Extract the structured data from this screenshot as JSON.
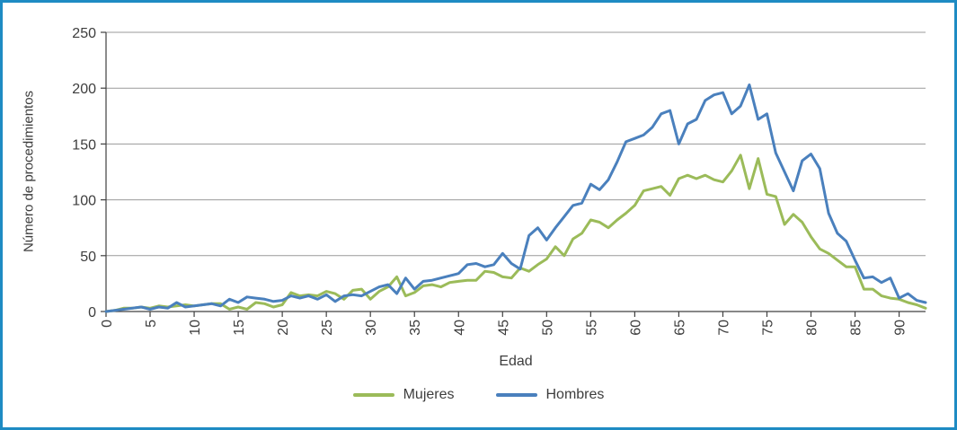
{
  "window": {
    "background": "#ffffff",
    "border_color": "#1e8bc3"
  },
  "chart_data": {
    "type": "line",
    "title": "",
    "xlabel": "Edad",
    "ylabel": "Número de procedimientos",
    "x": {
      "min": 0,
      "max": 93,
      "step": 1
    },
    "x_tick_labels": [
      "0",
      "5",
      "10",
      "15",
      "20",
      "25",
      "30",
      "35",
      "40",
      "45",
      "50",
      "55",
      "60",
      "65",
      "70",
      "75",
      "80",
      "85",
      "90"
    ],
    "y_ticks": [
      0,
      50,
      100,
      150,
      200,
      250
    ],
    "ylim": [
      0,
      250
    ],
    "grid": "horizontal",
    "gridline_color": "#9a9a9a",
    "axis_color": "#404040",
    "legend_position": "bottom",
    "series": [
      {
        "name": "Mujeres",
        "color": "#9bbb59",
        "values": [
          0,
          1,
          3,
          3,
          4,
          3,
          5,
          4,
          5,
          6,
          5,
          6,
          7,
          7,
          2,
          4,
          2,
          8,
          7,
          4,
          6,
          17,
          14,
          15,
          14,
          18,
          16,
          11,
          19,
          20,
          11,
          18,
          22,
          31,
          14,
          17,
          23,
          24,
          22,
          26,
          27,
          28,
          28,
          36,
          35,
          31,
          30,
          39,
          36,
          42,
          47,
          58,
          50,
          65,
          70,
          82,
          80,
          75,
          82,
          88,
          95,
          108,
          110,
          112,
          104,
          119,
          122,
          119,
          122,
          118,
          116,
          126,
          140,
          110,
          137,
          105,
          103,
          78,
          87,
          80,
          67,
          56,
          52,
          46,
          40,
          40,
          20,
          20,
          14,
          12,
          11,
          8,
          6,
          3
        ]
      },
      {
        "name": "Hombres",
        "color": "#4a80bd",
        "values": [
          0,
          1,
          2,
          3,
          4,
          2,
          4,
          3,
          8,
          4,
          5,
          6,
          7,
          5,
          11,
          8,
          13,
          12,
          11,
          9,
          10,
          14,
          12,
          14,
          11,
          15,
          9,
          14,
          15,
          14,
          18,
          22,
          24,
          16,
          30,
          20,
          27,
          28,
          30,
          32,
          34,
          42,
          43,
          40,
          42,
          52,
          43,
          38,
          68,
          75,
          64,
          75,
          85,
          95,
          97,
          114,
          109,
          118,
          134,
          152,
          155,
          158,
          165,
          177,
          180,
          150,
          168,
          172,
          189,
          194,
          196,
          177,
          184,
          203,
          172,
          177,
          142,
          125,
          108,
          135,
          141,
          128,
          88,
          70,
          63,
          46,
          30,
          31,
          26,
          30,
          12,
          16,
          10,
          8
        ]
      }
    ]
  }
}
